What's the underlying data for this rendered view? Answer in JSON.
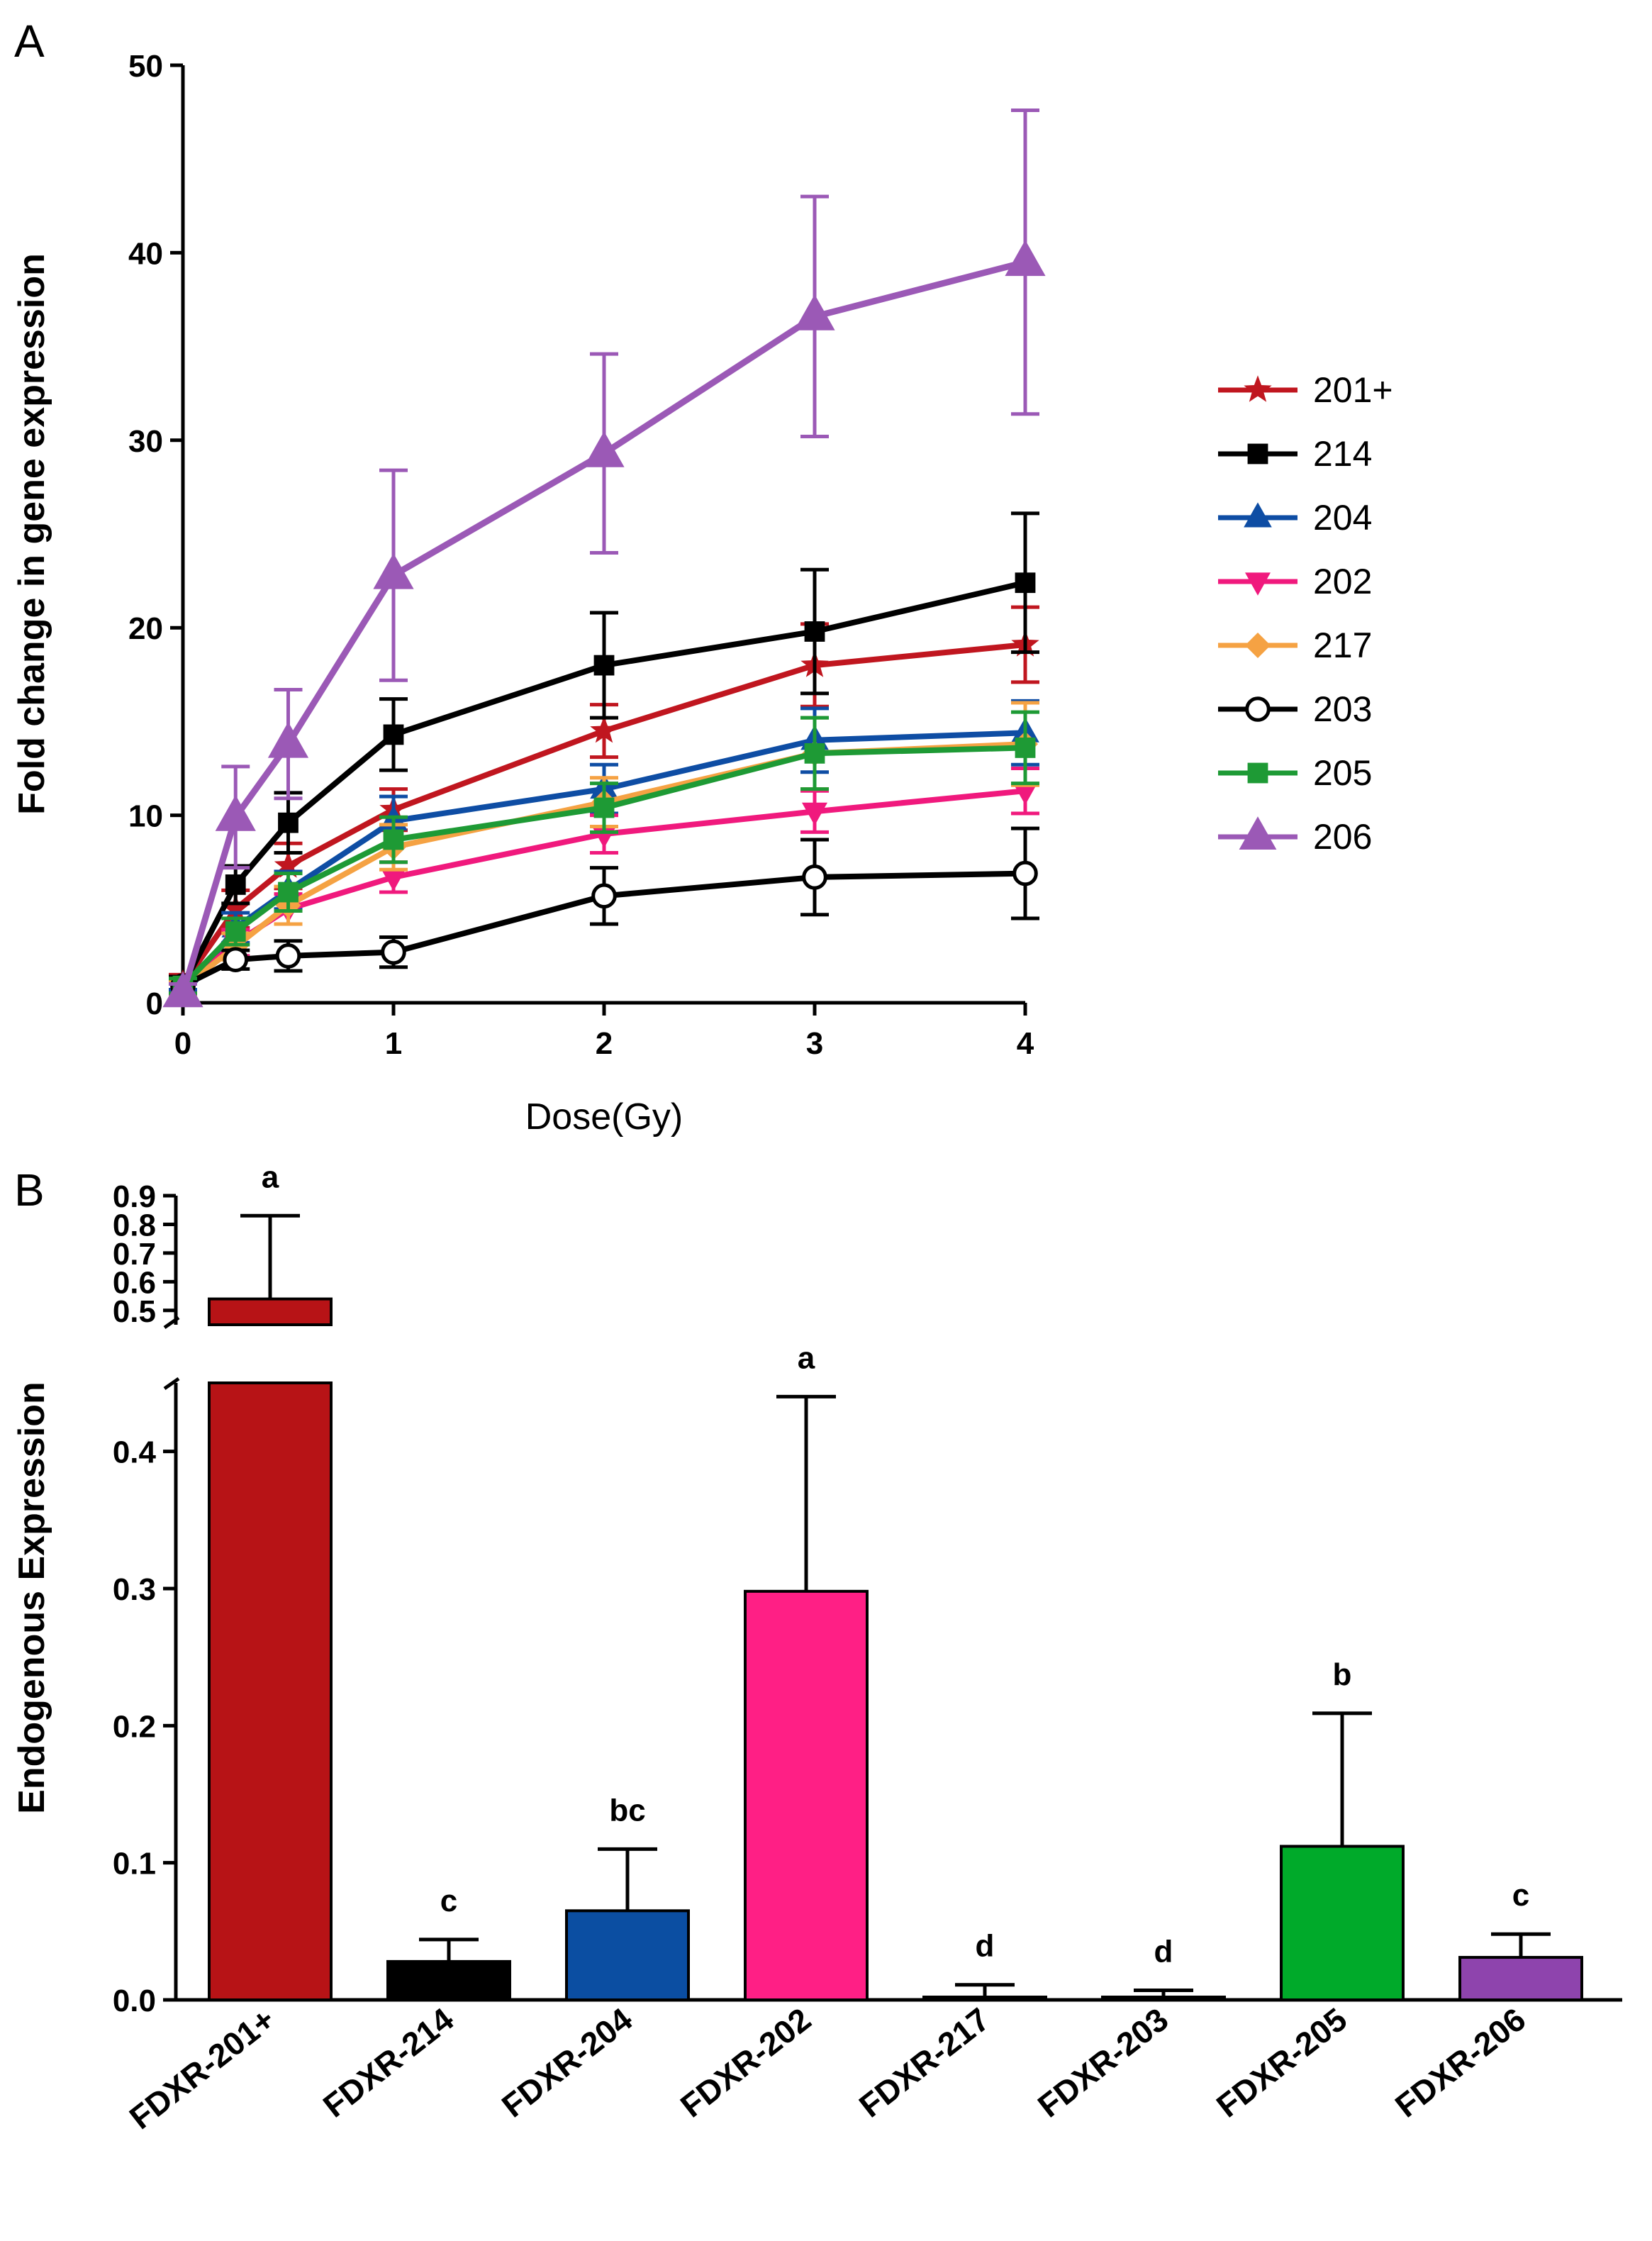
{
  "chart_data": [
    {
      "panel": "A",
      "type": "line",
      "xlabel": "Dose(Gy)",
      "ylabel": "Fold change in gene expression",
      "xlim": [
        0,
        4
      ],
      "ylim": [
        0,
        50
      ],
      "xticks": [
        0,
        1,
        2,
        3,
        4
      ],
      "yticks": [
        0,
        10,
        20,
        30,
        40,
        50
      ],
      "x": [
        0,
        0.25,
        0.5,
        1,
        2,
        3,
        4
      ],
      "legend_position": "right",
      "series": [
        {
          "name": "201+",
          "color": "#C0161F",
          "marker": "star",
          "values": [
            1,
            5,
            7.3,
            10.3,
            14.5,
            18,
            19.1
          ],
          "errors": [
            0.5,
            1,
            1.2,
            1.1,
            1.4,
            2.2,
            2
          ]
        },
        {
          "name": "214",
          "color": "#000000",
          "marker": "square",
          "values": [
            0.9,
            6.3,
            9.6,
            14.3,
            18,
            19.8,
            22.4
          ],
          "errors": [
            0.5,
            1,
            1.6,
            1.9,
            2.8,
            3.3,
            3.7
          ]
        },
        {
          "name": "204",
          "color": "#0E4DA4",
          "marker": "triangle-up",
          "values": [
            0.3,
            4,
            6,
            9.7,
            11.4,
            14,
            14.4
          ],
          "errors": [
            0.4,
            0.8,
            1,
            1.3,
            1.3,
            1.7,
            1.7
          ]
        },
        {
          "name": "202",
          "color": "#F0197D",
          "marker": "triangle-down",
          "values": [
            0.8,
            3.2,
            5,
            6.7,
            9,
            10.2,
            11.3
          ],
          "errors": [
            0.4,
            0.7,
            0.8,
            0.8,
            1,
            1.1,
            1.2
          ]
        },
        {
          "name": "217",
          "color": "#F5A243",
          "marker": "diamond",
          "values": [
            0.8,
            3,
            5.2,
            8.3,
            10.7,
            13.3,
            13.8
          ],
          "errors": [
            0.4,
            0.7,
            1,
            1.2,
            1.3,
            1.9,
            2.2
          ]
        },
        {
          "name": "203",
          "color": "#000000",
          "marker": "circle-open",
          "values": [
            0.9,
            2.3,
            2.5,
            2.7,
            5.7,
            6.7,
            6.9
          ],
          "errors": [
            0.4,
            0.5,
            0.8,
            0.8,
            1.5,
            2,
            2.4
          ]
        },
        {
          "name": "205",
          "color": "#1E9A35",
          "marker": "square",
          "values": [
            0.9,
            3.8,
            5.9,
            8.7,
            10.4,
            13.3,
            13.6
          ],
          "errors": [
            0.4,
            0.7,
            1,
            1.2,
            1.3,
            1.9,
            1.9
          ]
        },
        {
          "name": "206",
          "color": "#9B59B6",
          "marker": "triangle-up",
          "values": [
            0.5,
            9.9,
            13.8,
            22.8,
            29.3,
            36.6,
            39.5
          ],
          "errors": [
            0.5,
            2.7,
            2.9,
            5.6,
            5.3,
            6.4,
            8.1
          ]
        }
      ]
    },
    {
      "panel": "B",
      "type": "bar",
      "ylabel": "Endogenous Expression",
      "y_break": [
        0.45,
        0.5
      ],
      "lower_ylim": [
        0,
        0.45
      ],
      "upper_ylim": [
        0.45,
        0.9
      ],
      "lower_yticks": [
        "0.0",
        "0.1",
        "0.2",
        "0.3",
        "0.4"
      ],
      "upper_yticks": [
        "0.5",
        "0.6",
        "0.7",
        "0.8",
        "0.9"
      ],
      "categories": [
        "FDXR-201+",
        "FDXR-214",
        "FDXR-204",
        "FDXR-202",
        "FDXR-217",
        "FDXR-203",
        "FDXR-205",
        "FDXR-206"
      ],
      "values": [
        0.54,
        0.028,
        0.065,
        0.298,
        0.002,
        0.001,
        0.112,
        0.031
      ],
      "errors": [
        0.29,
        0.016,
        0.045,
        0.142,
        0.009,
        0.006,
        0.097,
        0.017
      ],
      "significance": [
        "a",
        "c",
        "bc",
        "a",
        "d",
        "d",
        "b",
        "c"
      ],
      "colors": [
        "#B71316",
        "#000000",
        "#0B4EA2",
        "#FF1F85",
        "#F5A243",
        "#000000",
        "#00AA2A",
        "#8E44AD"
      ]
    }
  ],
  "labels": {
    "panel_a": "A",
    "panel_b": "B"
  }
}
